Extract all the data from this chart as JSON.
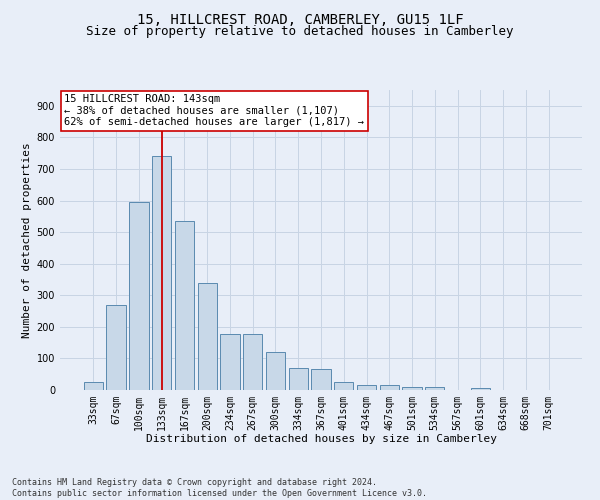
{
  "title_line1": "15, HILLCREST ROAD, CAMBERLEY, GU15 1LF",
  "title_line2": "Size of property relative to detached houses in Camberley",
  "xlabel": "Distribution of detached houses by size in Camberley",
  "ylabel": "Number of detached properties",
  "categories": [
    "33sqm",
    "67sqm",
    "100sqm",
    "133sqm",
    "167sqm",
    "200sqm",
    "234sqm",
    "267sqm",
    "300sqm",
    "334sqm",
    "367sqm",
    "401sqm",
    "434sqm",
    "467sqm",
    "501sqm",
    "534sqm",
    "567sqm",
    "601sqm",
    "634sqm",
    "668sqm",
    "701sqm"
  ],
  "values": [
    25,
    270,
    595,
    740,
    535,
    340,
    178,
    178,
    120,
    70,
    65,
    25,
    15,
    15,
    8,
    8,
    0,
    5,
    0,
    0,
    0
  ],
  "bar_color": "#c8d8e8",
  "bar_edge_color": "#5a8ab0",
  "grid_color": "#c8d4e4",
  "background_color": "#e8eef8",
  "vline_x_index": 3,
  "vline_color": "#cc0000",
  "annotation_text": "15 HILLCREST ROAD: 143sqm\n← 38% of detached houses are smaller (1,107)\n62% of semi-detached houses are larger (1,817) →",
  "annotation_box_color": "#ffffff",
  "annotation_box_edge": "#cc0000",
  "ylim": [
    0,
    950
  ],
  "yticks": [
    0,
    100,
    200,
    300,
    400,
    500,
    600,
    700,
    800,
    900
  ],
  "footer_text": "Contains HM Land Registry data © Crown copyright and database right 2024.\nContains public sector information licensed under the Open Government Licence v3.0.",
  "title_fontsize": 10,
  "subtitle_fontsize": 9,
  "axis_label_fontsize": 8,
  "tick_fontsize": 7,
  "annotation_fontsize": 7.5,
  "footer_fontsize": 6
}
